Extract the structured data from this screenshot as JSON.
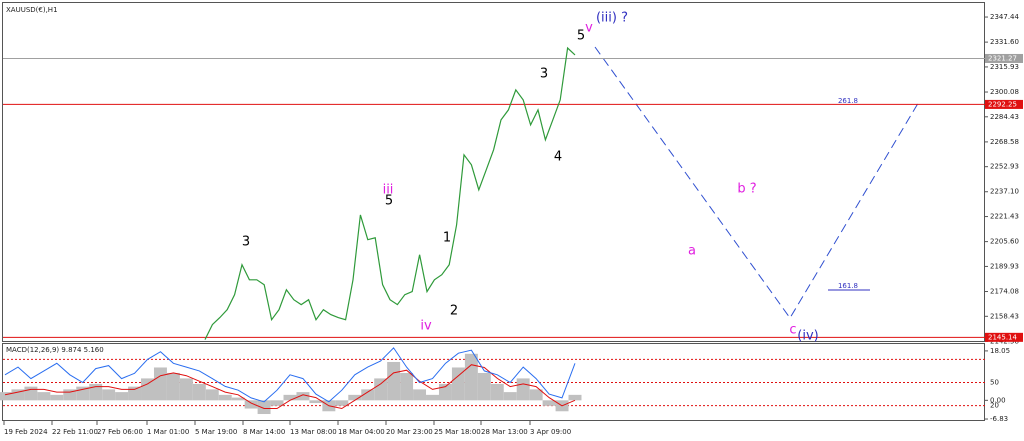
{
  "chart_data": [
    {
      "type": "line",
      "title": "XAUUSD(€),H1",
      "color": "#2f9a3a",
      "values": [
        2143.7,
        2153.2,
        2157.6,
        2162.6,
        2172.1,
        2191.0,
        2181.5,
        2181.5,
        2178.4,
        2156.3,
        2162.6,
        2175.2,
        2168.9,
        2165.8,
        2168.9,
        2156.3,
        2162.6,
        2159.5,
        2157.6,
        2156.3,
        2181.5,
        2222.5,
        2206.8,
        2208.0,
        2178.4,
        2168.9,
        2165.8,
        2172.1,
        2174.0,
        2197.3,
        2174.0,
        2181.5,
        2184.7,
        2191.0,
        2216.2,
        2260.4,
        2254.1,
        2238.3,
        2250.9,
        2263.6,
        2282.5,
        2288.8,
        2301.4,
        2295.1,
        2279.3,
        2288.8,
        2269.9,
        2282.5,
        2295.1,
        2327.9,
        2323.5
      ],
      "ylim": [
        2142.2,
        2358.2
      ],
      "yticks": [
        2347.44,
        {
          "value": 2331.6,
          "label": "2331.60"
        },
        2315.93,
        2300.08,
        2284.43,
        2268.58,
        2252.93,
        {
          "value": 2237.1,
          "label": "2237.10"
        },
        2221.43,
        {
          "value": 2205.6,
          "label": "2205.60"
        },
        2189.93,
        2174.08,
        2158.43,
        2142.58
      ],
      "hlines": [
        {
          "value": 2321.27,
          "color": "#a0a0a0"
        },
        {
          "value": 2292.25,
          "color": "#e01010"
        },
        {
          "value": 2145.14,
          "color": "#e01010"
        }
      ],
      "x_axis_labels": [
        "19 Feb 2024",
        "22 Feb 11:00",
        "27 Feb 06:00",
        "1 Mar 01:00",
        "5 Mar 19:00",
        "8 Mar 14:00",
        "13 Mar 08:00",
        "18 Mar 04:00",
        "20 Mar 23:00",
        "25 Mar 18:00",
        "28 Mar 13:00",
        "3 Apr 09:00"
      ],
      "annotations": [
        {
          "text": "(iii) ?",
          "color": "#3030c0"
        },
        {
          "text": "5",
          "color": "#000000"
        },
        {
          "text": "v",
          "color": "#e020e0"
        },
        {
          "text": "3",
          "color": "#000000"
        },
        {
          "text": "4",
          "color": "#000000"
        },
        {
          "text": "iii",
          "color": "#e020e0"
        },
        {
          "text": "5",
          "color": "#000000"
        },
        {
          "text": "1",
          "color": "#000000"
        },
        {
          "text": "2",
          "color": "#000000"
        },
        {
          "text": "iv",
          "color": "#e020e0"
        },
        {
          "text": "3",
          "color": "#000000"
        },
        {
          "text": "b ?",
          "color": "#e020e0"
        },
        {
          "text": "a",
          "color": "#e020e0"
        },
        {
          "text": "c",
          "color": "#e020e0"
        },
        {
          "text": "(iv)",
          "color": "#3030c0"
        },
        {
          "text": "261.8",
          "color": "#3030c0"
        },
        {
          "text": "161.8",
          "color": "#3030c0"
        }
      ]
    },
    {
      "type": "macd",
      "title": "MACD(12,26,9) 9.874 5.160",
      "ylim": [
        -7.55,
        20.57
      ],
      "yticks": [
        18.05,
        {
          "value": 0,
          "label": "0.00"
        },
        -6.83
      ],
      "histogram": [
        3,
        4,
        5,
        3,
        2,
        4,
        5,
        6,
        4,
        3,
        5,
        8,
        12,
        10,
        8,
        6,
        4,
        2,
        1,
        -3,
        -5,
        -2,
        2,
        3,
        -1,
        -4,
        -2,
        2,
        4,
        8,
        14,
        10,
        4,
        2,
        6,
        12,
        17,
        10,
        6,
        3,
        8,
        4,
        -2,
        -4,
        2
      ],
      "signal": [
        2,
        3,
        4,
        4,
        3,
        3,
        4,
        5,
        5,
        4,
        4,
        6,
        9,
        10,
        9,
        7,
        5,
        3,
        2,
        -1,
        -3,
        -3,
        0,
        2,
        1,
        -2,
        -3,
        0,
        3,
        6,
        10,
        11,
        7,
        4,
        5,
        9,
        13,
        12,
        8,
        5,
        6,
        5,
        1,
        -2,
        0
      ],
      "oscillator": {
        "color": "#2a6ef0",
        "y2lim": [
          0,
          100
        ],
        "y2ticks": [
          50,
          20
        ],
        "levels": [
          80,
          50,
          20
        ],
        "values": [
          60,
          70,
          55,
          65,
          75,
          60,
          50,
          68,
          72,
          55,
          62,
          80,
          90,
          75,
          70,
          65,
          55,
          45,
          40,
          30,
          25,
          40,
          60,
          55,
          35,
          25,
          40,
          60,
          70,
          78,
          95,
          70,
          50,
          55,
          75,
          88,
          92,
          65,
          60,
          50,
          70,
          55,
          35,
          30,
          75
        ]
      }
    }
  ]
}
